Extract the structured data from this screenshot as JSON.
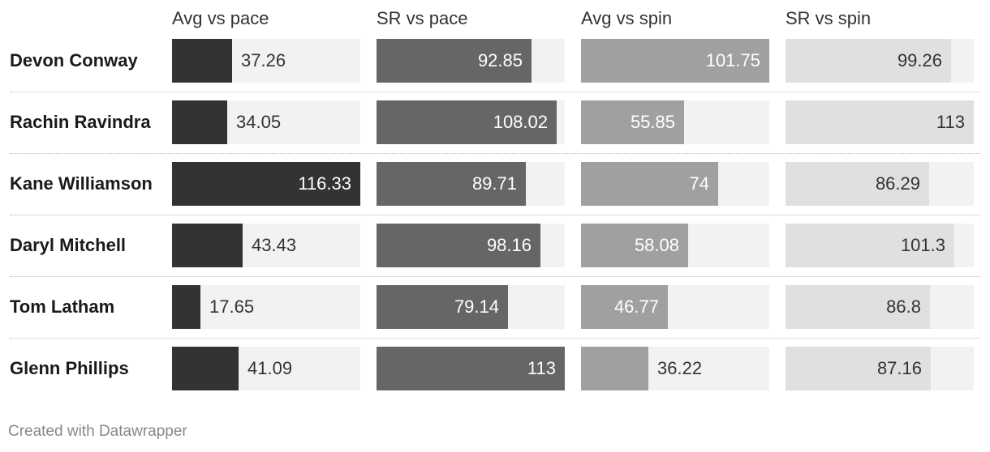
{
  "chart_data": {
    "type": "table",
    "columns": [
      {
        "key": "avg_pace",
        "label": "Avg vs pace",
        "max": 116.33,
        "color": "#333333",
        "text_inside": "#ffffff",
        "text_outside": "#333333"
      },
      {
        "key": "sr_pace",
        "label": "SR vs pace",
        "max": 113,
        "color": "#666666",
        "text_inside": "#ffffff",
        "text_outside": "#333333"
      },
      {
        "key": "avg_spin",
        "label": "Avg vs spin",
        "max": 101.75,
        "color": "#a0a0a0",
        "text_inside": "#ffffff",
        "text_outside": "#333333"
      },
      {
        "key": "sr_spin",
        "label": "SR vs spin",
        "max": 113,
        "color": "#e0e0e0",
        "text_inside": "#333333",
        "text_outside": "#333333"
      }
    ],
    "rows": [
      {
        "player": "Devon Conway",
        "values": [
          37.26,
          92.85,
          101.75,
          99.26
        ],
        "labels": [
          "37.26",
          "92.85",
          "101.75",
          "99.26"
        ]
      },
      {
        "player": "Rachin Ravindra",
        "values": [
          34.05,
          108.02,
          55.85,
          113
        ],
        "labels": [
          "34.05",
          "108.02",
          "55.85",
          "113"
        ]
      },
      {
        "player": "Kane Williamson",
        "values": [
          116.33,
          89.71,
          74,
          86.29
        ],
        "labels": [
          "116.33",
          "89.71",
          "74",
          "86.29"
        ]
      },
      {
        "player": "Daryl Mitchell",
        "values": [
          43.43,
          98.16,
          58.08,
          101.3
        ],
        "labels": [
          "43.43",
          "98.16",
          "58.08",
          "101.3"
        ]
      },
      {
        "player": "Tom Latham",
        "values": [
          17.65,
          79.14,
          46.77,
          86.8
        ],
        "labels": [
          "17.65",
          "79.14",
          "46.77",
          "86.8"
        ]
      },
      {
        "player": "Glenn Phillips",
        "values": [
          41.09,
          113,
          36.22,
          87.16
        ],
        "labels": [
          "41.09",
          "113",
          "36.22",
          "87.16"
        ]
      }
    ]
  },
  "footer": "Created with Datawrapper"
}
